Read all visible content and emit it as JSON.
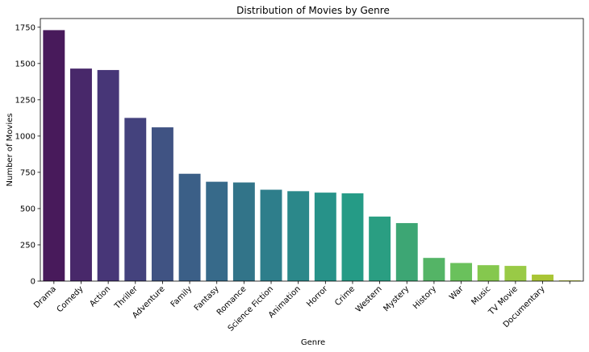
{
  "chart_data": {
    "type": "bar",
    "title": "Distribution of Movies by Genre",
    "xlabel": "Genre",
    "ylabel": "Number of Movies",
    "categories": [
      "Drama",
      "Comedy",
      "Action",
      "Thriller",
      "Adventure",
      "Family",
      "Fantasy",
      "Romance",
      "Science Fiction",
      "Animation",
      "Horror",
      "Crime",
      "Western",
      "Mystery",
      "History",
      "War",
      "Music",
      "TV Movie",
      "Documentary",
      ""
    ],
    "values": [
      1730,
      1465,
      1455,
      1125,
      1060,
      740,
      685,
      680,
      630,
      620,
      610,
      605,
      445,
      400,
      160,
      125,
      110,
      105,
      45,
      5
    ],
    "colors": [
      "#481a5b",
      "#48286a",
      "#473677",
      "#44427d",
      "#405383",
      "#3b5f87",
      "#376a8a",
      "#327489",
      "#2e7e8b",
      "#2b888a",
      "#279289",
      "#259b86",
      "#2a9e82",
      "#3da674",
      "#54b466",
      "#6ac15c",
      "#85c84e",
      "#99ca46",
      "#a9c535",
      "#bdcb2e"
    ],
    "y_ticks": [
      0,
      250,
      500,
      750,
      1000,
      1250,
      1500,
      1750
    ],
    "y_tick_labels": [
      "0",
      "250",
      "500",
      "750",
      "1000",
      "1250",
      "1500",
      "1750"
    ],
    "ylim": [
      0,
      1810
    ],
    "grid": false
  }
}
